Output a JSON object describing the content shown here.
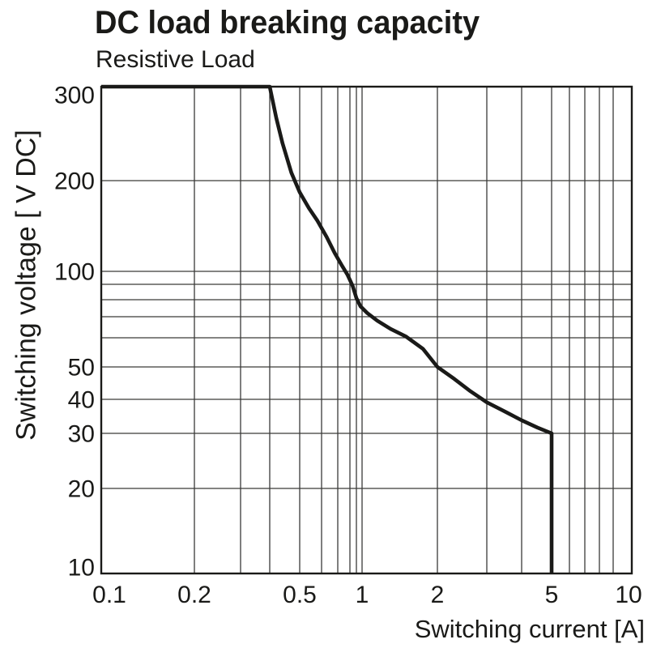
{
  "colors": {
    "ink": "#1a1a18",
    "grid": "#3a3a38",
    "background": "#ffffff"
  },
  "chart_data": {
    "type": "line",
    "title": "DC load breaking capacity",
    "subtitle": "Resistive Load",
    "xlabel": "Switching current [A]",
    "ylabel": "Switching voltage [ V DC]",
    "x_scale": "log",
    "y_scale": "log",
    "xlim": [
      0.1,
      10
    ],
    "ylim": [
      10,
      300
    ],
    "grid": "on",
    "legend": "none",
    "x_ticks": [
      {
        "value": 0.1,
        "label": "0.1"
      },
      {
        "value": 0.2,
        "label": "0.2"
      },
      {
        "value": 0.5,
        "label": "0.5"
      },
      {
        "value": 1,
        "label": "1"
      },
      {
        "value": 2,
        "label": "2"
      },
      {
        "value": 5,
        "label": "5"
      },
      {
        "value": 10,
        "label": "10"
      }
    ],
    "y_ticks": [
      {
        "value": 300,
        "label": "300"
      },
      {
        "value": 200,
        "label": "200"
      },
      {
        "value": 100,
        "label": "100"
      },
      {
        "value": 50,
        "label": "50"
      },
      {
        "value": 40,
        "label": "40"
      },
      {
        "value": 30,
        "label": "30"
      },
      {
        "value": 20,
        "label": "20"
      },
      {
        "value": 10,
        "label": "10"
      }
    ],
    "x_gridlines": [
      0.1,
      0.2,
      0.3,
      0.4,
      0.5,
      0.6,
      0.7,
      0.8,
      0.9,
      1,
      2,
      3,
      4,
      5,
      6,
      7,
      8,
      9,
      10
    ],
    "y_gridlines": [
      10,
      20,
      30,
      40,
      50,
      60,
      70,
      80,
      90,
      100,
      200,
      300
    ],
    "series": [
      {
        "name": "Resistive Load",
        "points": [
          [
            0.1,
            300
          ],
          [
            0.4,
            300
          ],
          [
            0.42,
            262
          ],
          [
            0.44,
            235
          ],
          [
            0.47,
            207
          ],
          [
            0.5,
            183
          ],
          [
            0.54,
            162
          ],
          [
            0.58,
            147
          ],
          [
            0.63,
            130
          ],
          [
            0.68,
            115
          ],
          [
            0.73,
            105
          ],
          [
            0.78,
            97
          ],
          [
            0.84,
            89
          ],
          [
            0.9,
            81
          ],
          [
            0.97,
            76
          ],
          [
            1.05,
            72
          ],
          [
            1.15,
            68
          ],
          [
            1.3,
            64
          ],
          [
            1.5,
            60.5
          ],
          [
            1.75,
            56
          ],
          [
            2.0,
            50
          ],
          [
            2.3,
            46
          ],
          [
            2.6,
            42.5
          ],
          [
            3.0,
            39
          ],
          [
            3.5,
            36
          ],
          [
            4.0,
            33.5
          ],
          [
            4.5,
            31.5
          ],
          [
            5.0,
            30
          ],
          [
            5.0,
            10
          ]
        ]
      }
    ]
  }
}
